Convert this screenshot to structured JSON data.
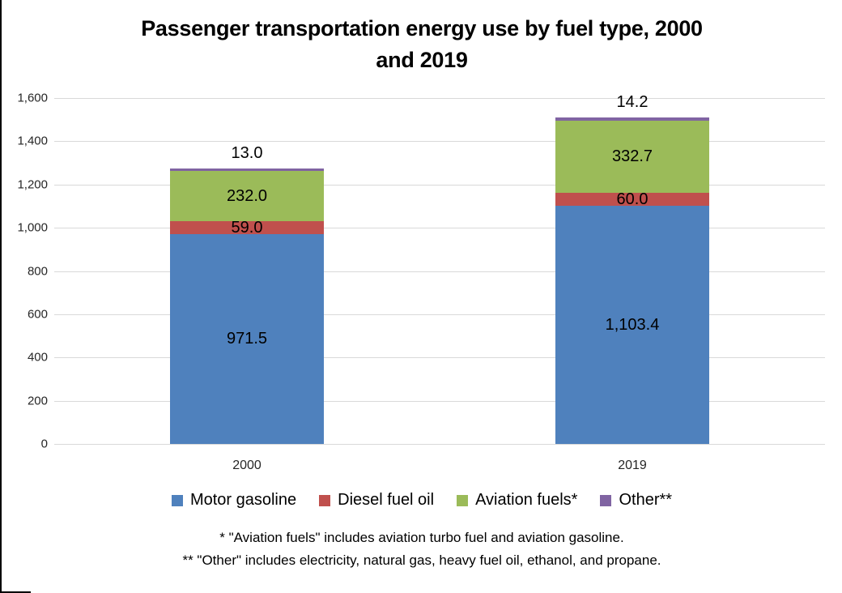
{
  "title_lines": [
    "Passenger transportation energy use by fuel type, 2000",
    "and 2019"
  ],
  "chart_data": {
    "type": "bar",
    "stacked": true,
    "title": "Passenger transportation energy use by fuel type, 2000 and 2019",
    "categories": [
      "2000",
      "2019"
    ],
    "series": [
      {
        "name": "Motor gasoline",
        "color": "#4F81BD",
        "values": [
          971.5,
          1103.4
        ],
        "labels": [
          "971.5",
          "1,103.4"
        ],
        "label_position": "inside"
      },
      {
        "name": "Diesel fuel oil",
        "color": "#C0504D",
        "values": [
          59.0,
          60.0
        ],
        "labels": [
          "59.0",
          "60.0"
        ],
        "label_position": "inside"
      },
      {
        "name": "Aviation fuels*",
        "color": "#9BBB59",
        "values": [
          232.0,
          332.7
        ],
        "labels": [
          "232.0",
          "332.7"
        ],
        "label_position": "inside"
      },
      {
        "name": "Other**",
        "color": "#8064A2",
        "values": [
          13.0,
          14.2
        ],
        "labels": [
          "13.0",
          "14.2"
        ],
        "label_position": "above"
      }
    ],
    "xlabel": "",
    "ylabel": "",
    "ylim": [
      0,
      1600
    ],
    "ytick_interval": 200,
    "ytick_labels": [
      "0",
      "200",
      "400",
      "600",
      "800",
      "1,000",
      "1,200",
      "1,400",
      "1,600"
    ],
    "grid": true,
    "gridline_color": "#D9D9D9",
    "legend_position": "bottom"
  },
  "footnotes": [
    "* \"Aviation fuels\" includes aviation turbo fuel and aviation gasoline.",
    "** \"Other\" includes electricity, natural gas, heavy fuel oil, ethanol, and propane."
  ]
}
